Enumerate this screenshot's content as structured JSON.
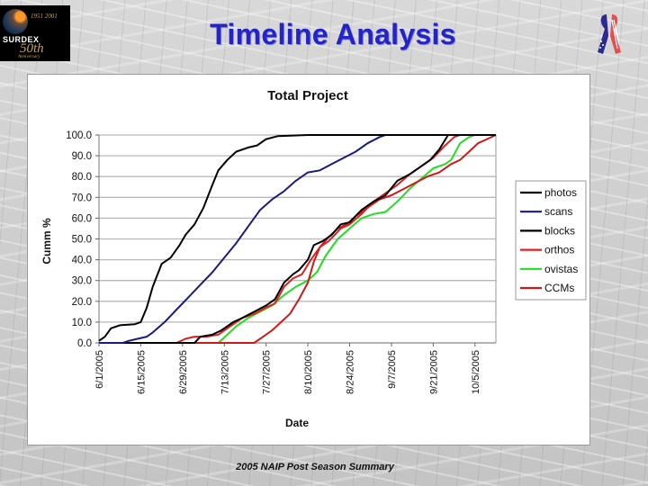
{
  "header": {
    "title": "Timeline Analysis",
    "logo": {
      "years": "1951 2001",
      "brand": "SURDEX",
      "fifty": "50th",
      "anniversary": "Anniversary"
    },
    "ribbon_icon": "us-flag-ribbon-icon"
  },
  "footer": {
    "caption": "2005 NAIP Post Season Summary"
  },
  "colors": {
    "photos": "#000000",
    "scans": "#1a1a80",
    "blocks": "#000000",
    "orthos": "#e02020",
    "ovistas": "#22dd22",
    "CCMs": "#cc1a1a"
  },
  "chart_data": {
    "type": "line",
    "title": "Total Project",
    "xlabel": "Date",
    "ylabel": "Cumm %",
    "ylim": [
      0,
      100
    ],
    "yticks": [
      "0.0",
      "10.0",
      "20.0",
      "30.0",
      "40.0",
      "50.0",
      "60.0",
      "70.0",
      "80.0",
      "90.0",
      "100.0"
    ],
    "xticks": [
      "6/1/2005",
      "6/15/2005",
      "6/29/2005",
      "7/13/2005",
      "7/27/2005",
      "8/10/2005",
      "8/24/2005",
      "9/7/2005",
      "9/21/2005",
      "10/5/2005"
    ],
    "x_unit": "days since 6/1/2005",
    "grid": true,
    "legend_position": "right",
    "legend": [
      "photos",
      "scans",
      "blocks",
      "orthos",
      "ovistas",
      "CCMs"
    ],
    "series": [
      {
        "name": "photos",
        "points": [
          [
            0,
            1
          ],
          [
            2,
            3
          ],
          [
            4,
            7
          ],
          [
            7,
            8.5
          ],
          [
            12,
            9
          ],
          [
            14,
            10
          ],
          [
            16,
            17
          ],
          [
            18,
            27
          ],
          [
            21,
            38
          ],
          [
            24,
            41
          ],
          [
            27,
            47
          ],
          [
            29,
            52
          ],
          [
            32,
            57
          ],
          [
            35,
            65
          ],
          [
            38,
            76
          ],
          [
            40,
            83
          ],
          [
            43,
            88
          ],
          [
            46,
            92
          ],
          [
            50,
            94
          ],
          [
            53,
            95
          ],
          [
            56,
            98
          ],
          [
            60,
            99.5
          ],
          [
            70,
            100
          ],
          [
            133,
            100
          ]
        ]
      },
      {
        "name": "scans",
        "points": [
          [
            0,
            0
          ],
          [
            8,
            0
          ],
          [
            10,
            1
          ],
          [
            13,
            2
          ],
          [
            16,
            3
          ],
          [
            18,
            5
          ],
          [
            22,
            10
          ],
          [
            26,
            16
          ],
          [
            30,
            22
          ],
          [
            34,
            28
          ],
          [
            38,
            34
          ],
          [
            42,
            41
          ],
          [
            46,
            48
          ],
          [
            50,
            56
          ],
          [
            54,
            64
          ],
          [
            58,
            69
          ],
          [
            62,
            73
          ],
          [
            66,
            78
          ],
          [
            70,
            82
          ],
          [
            74,
            83
          ],
          [
            78,
            86
          ],
          [
            82,
            89
          ],
          [
            86,
            92
          ],
          [
            90,
            96
          ],
          [
            94,
            99
          ],
          [
            96,
            100
          ],
          [
            133,
            100
          ]
        ]
      },
      {
        "name": "blocks",
        "points": [
          [
            0,
            0
          ],
          [
            32,
            0
          ],
          [
            34,
            3
          ],
          [
            38,
            4
          ],
          [
            41,
            6
          ],
          [
            45,
            10
          ],
          [
            48,
            12
          ],
          [
            52,
            15
          ],
          [
            56,
            18
          ],
          [
            59,
            21
          ],
          [
            62,
            29
          ],
          [
            65,
            33
          ],
          [
            67,
            35
          ],
          [
            70,
            40
          ],
          [
            72,
            47
          ],
          [
            75,
            49
          ],
          [
            78,
            52
          ],
          [
            81,
            57
          ],
          [
            84,
            58
          ],
          [
            88,
            64
          ],
          [
            92,
            68
          ],
          [
            96,
            71
          ],
          [
            100,
            78
          ],
          [
            104,
            81
          ],
          [
            108,
            85
          ],
          [
            111,
            88
          ],
          [
            114,
            93
          ],
          [
            117,
            100
          ],
          [
            133,
            100
          ]
        ]
      },
      {
        "name": "orthos",
        "points": [
          [
            0,
            0
          ],
          [
            26,
            0
          ],
          [
            29,
            2
          ],
          [
            32,
            3
          ],
          [
            36,
            3
          ],
          [
            40,
            4
          ],
          [
            44,
            8
          ],
          [
            48,
            12
          ],
          [
            52,
            14
          ],
          [
            56,
            17
          ],
          [
            59,
            19
          ],
          [
            62,
            27
          ],
          [
            65,
            31
          ],
          [
            68,
            33
          ],
          [
            71,
            40
          ],
          [
            74,
            46
          ],
          [
            77,
            49
          ],
          [
            81,
            55
          ],
          [
            84,
            57
          ],
          [
            88,
            62
          ],
          [
            92,
            68
          ],
          [
            96,
            72
          ],
          [
            100,
            76
          ],
          [
            104,
            81
          ],
          [
            108,
            85
          ],
          [
            112,
            89
          ],
          [
            116,
            95
          ],
          [
            119,
            99
          ],
          [
            121,
            100
          ],
          [
            133,
            100
          ]
        ]
      },
      {
        "name": "ovistas",
        "points": [
          [
            0,
            0
          ],
          [
            40,
            0
          ],
          [
            43,
            4
          ],
          [
            46,
            8
          ],
          [
            50,
            12
          ],
          [
            54,
            15
          ],
          [
            58,
            18
          ],
          [
            62,
            23
          ],
          [
            66,
            27
          ],
          [
            70,
            30
          ],
          [
            73,
            34
          ],
          [
            76,
            42
          ],
          [
            80,
            50
          ],
          [
            84,
            55
          ],
          [
            88,
            60
          ],
          [
            92,
            62
          ],
          [
            96,
            63
          ],
          [
            100,
            68
          ],
          [
            104,
            74
          ],
          [
            108,
            79
          ],
          [
            112,
            84
          ],
          [
            116,
            86
          ],
          [
            118,
            88
          ],
          [
            121,
            96
          ],
          [
            124,
            99
          ],
          [
            126,
            100
          ],
          [
            133,
            100
          ]
        ]
      },
      {
        "name": "CCMs",
        "points": [
          [
            0,
            0
          ],
          [
            52,
            0
          ],
          [
            55,
            3
          ],
          [
            58,
            6
          ],
          [
            61,
            10
          ],
          [
            64,
            14
          ],
          [
            67,
            21
          ],
          [
            70,
            29
          ],
          [
            72,
            39
          ],
          [
            74,
            46
          ],
          [
            77,
            51
          ],
          [
            80,
            55
          ],
          [
            83,
            57
          ],
          [
            86,
            61
          ],
          [
            90,
            65
          ],
          [
            94,
            69
          ],
          [
            98,
            71
          ],
          [
            102,
            74
          ],
          [
            106,
            77
          ],
          [
            110,
            80
          ],
          [
            114,
            82
          ],
          [
            118,
            86
          ],
          [
            121,
            88
          ],
          [
            124,
            92
          ],
          [
            127,
            96
          ],
          [
            130,
            98
          ],
          [
            133,
            100
          ]
        ]
      }
    ]
  }
}
